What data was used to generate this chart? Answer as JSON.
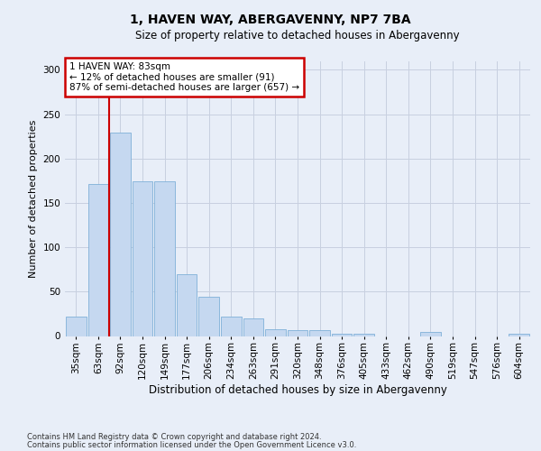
{
  "title": "1, HAVEN WAY, ABERGAVENNY, NP7 7BA",
  "subtitle": "Size of property relative to detached houses in Abergavenny",
  "xlabel": "Distribution of detached houses by size in Abergavenny",
  "ylabel": "Number of detached properties",
  "footnote1": "Contains HM Land Registry data © Crown copyright and database right 2024.",
  "footnote2": "Contains public sector information licensed under the Open Government Licence v3.0.",
  "annotation_line1": "1 HAVEN WAY: 83sqm",
  "annotation_line2": "← 12% of detached houses are smaller (91)",
  "annotation_line3": "87% of semi-detached houses are larger (657) →",
  "bar_labels": [
    "35sqm",
    "63sqm",
    "92sqm",
    "120sqm",
    "149sqm",
    "177sqm",
    "206sqm",
    "234sqm",
    "263sqm",
    "291sqm",
    "320sqm",
    "348sqm",
    "376sqm",
    "405sqm",
    "433sqm",
    "462sqm",
    "490sqm",
    "519sqm",
    "547sqm",
    "576sqm",
    "604sqm"
  ],
  "bar_values": [
    22,
    171,
    229,
    174,
    174,
    70,
    44,
    22,
    20,
    8,
    7,
    7,
    3,
    3,
    0,
    0,
    5,
    0,
    0,
    0,
    3
  ],
  "bar_color": "#c5d8f0",
  "bar_edge_color": "#7fb0d8",
  "ylim": [
    0,
    310
  ],
  "yticks": [
    0,
    50,
    100,
    150,
    200,
    250,
    300
  ],
  "bg_color": "#e8eef8",
  "grid_color": "#c8d0e0",
  "annotation_box_color": "#ffffff",
  "annotation_box_edge": "#cc0000",
  "vline_color": "#cc0000",
  "title_fontsize": 10,
  "subtitle_fontsize": 8.5,
  "ylabel_fontsize": 8,
  "xlabel_fontsize": 8.5,
  "tick_fontsize": 7.5,
  "annotation_fontsize": 7.5,
  "footnote_fontsize": 6
}
